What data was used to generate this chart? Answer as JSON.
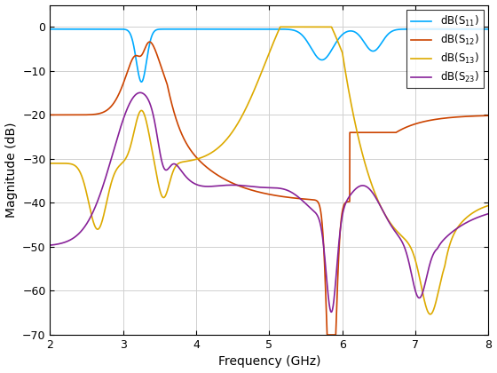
{
  "title": "",
  "xlabel": "Frequency (GHz)",
  "ylabel": "Magnitude (dB)",
  "xlim": [
    2,
    8
  ],
  "ylim": [
    -70,
    5
  ],
  "yticks": [
    0,
    -10,
    -20,
    -30,
    -40,
    -50,
    -60,
    -70
  ],
  "xticks": [
    2,
    3,
    4,
    5,
    6,
    7,
    8
  ],
  "colors": {
    "S11": "#00AAFF",
    "S12": "#CC4400",
    "S13": "#DDAA00",
    "S23": "#882299"
  },
  "background": "#FFFFFF",
  "grid_color": "#D0D0D0"
}
